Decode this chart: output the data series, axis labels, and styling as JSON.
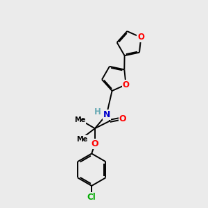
{
  "background_color": "#ebebeb",
  "atom_colors": {
    "O": "#ff0000",
    "N": "#0000cc",
    "H": "#6aabb5",
    "Cl": "#00aa00",
    "C": "#000000"
  },
  "bond_color": "#000000",
  "bond_lw": 1.4
}
